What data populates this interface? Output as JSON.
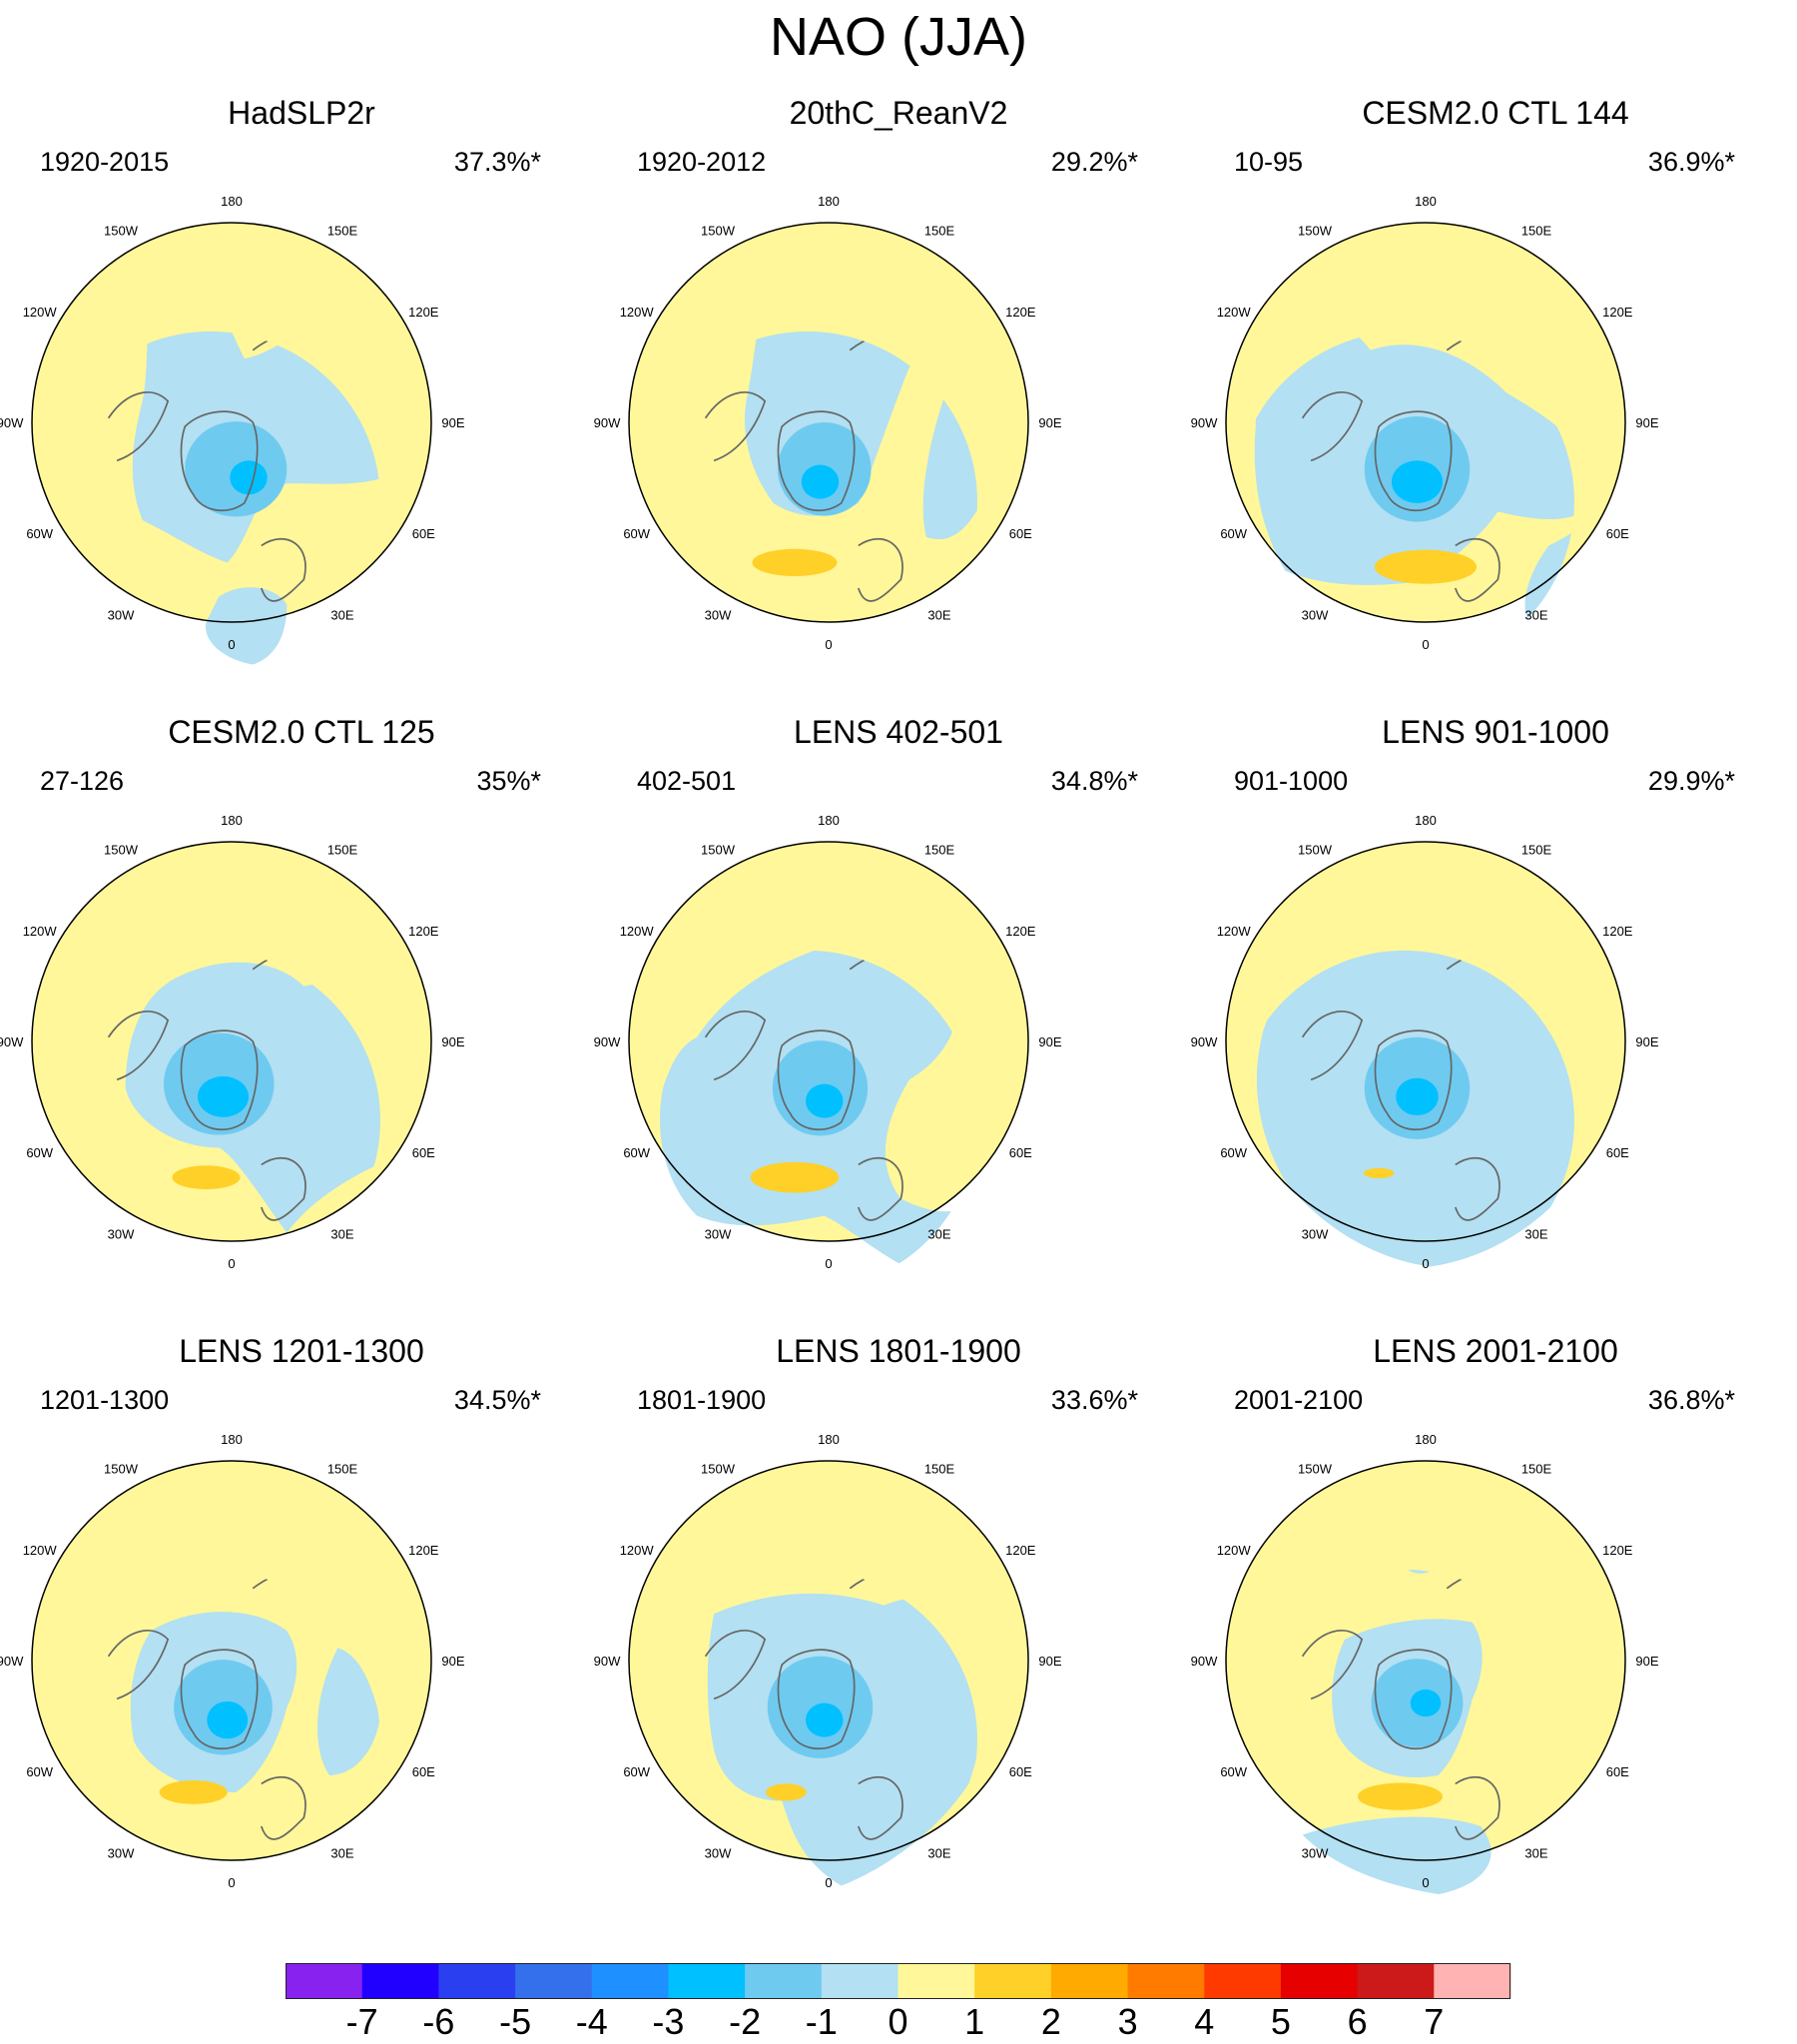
{
  "title": "NAO (JJA)",
  "panels": [
    {
      "name": "HadSLP2r",
      "period": "1920-2015",
      "variance": "37.3%*"
    },
    {
      "name": "20thC_ReanV2",
      "period": "1920-2012",
      "variance": "29.2%*"
    },
    {
      "name": "CESM2.0 CTL 144",
      "period": "10-95",
      "variance": "36.9%*"
    },
    {
      "name": "CESM2.0 CTL 125",
      "period": "27-126",
      "variance": "35%*"
    },
    {
      "name": "LENS 402-501",
      "period": "402-501",
      "variance": "34.8%*"
    },
    {
      "name": "LENS 901-1000",
      "period": "901-1000",
      "variance": "29.9%*"
    },
    {
      "name": "LENS 1201-1300",
      "period": "1201-1300",
      "variance": "34.5%*"
    },
    {
      "name": "LENS 1801-1900",
      "period": "1801-1900",
      "variance": "33.6%*"
    },
    {
      "name": "LENS 2001-2100",
      "period": "2001-2100",
      "variance": "36.8%*"
    }
  ],
  "longitude_labels": [
    "180",
    "150E",
    "120E",
    "90E",
    "60E",
    "30E",
    "0",
    "30W",
    "60W",
    "90W",
    "120W",
    "150W"
  ],
  "colorbar": {
    "ticks": [
      "-7",
      "-6",
      "-5",
      "-4",
      "-3",
      "-2",
      "-1",
      "0",
      "1",
      "2",
      "3",
      "4",
      "5",
      "6",
      "7"
    ],
    "colors": [
      "#8822ee",
      "#2200ff",
      "#2a3ff0",
      "#3470ec",
      "#1e90ff",
      "#00c0ff",
      "#6fcaf0",
      "#b3e0f2",
      "#fff799",
      "#ffd027",
      "#ffaa00",
      "#ff7b00",
      "#ff3a00",
      "#e60000",
      "#cc1a1a",
      "#ffb3b3"
    ]
  },
  "colors": {
    "positive_weak": "#fff799",
    "negative_weak": "#b3e0f2",
    "negative_mid": "#6fcaf0",
    "negative_strong": "#00c0ff",
    "positive_mid": "#ffd027",
    "coast": "#666666"
  }
}
